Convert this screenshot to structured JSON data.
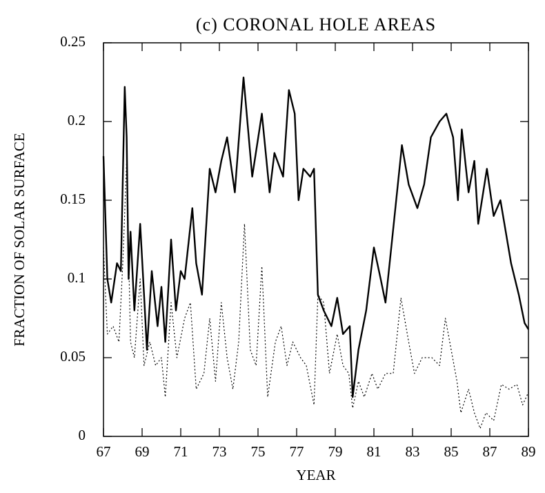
{
  "chart_data": {
    "type": "line",
    "title": "(c) CORONAL HOLE AREAS",
    "xlabel": "YEAR",
    "ylabel": "FRACTION OF SOLAR SURFACE",
    "xlim": [
      67,
      89
    ],
    "xticks": [
      67,
      69,
      71,
      73,
      75,
      77,
      79,
      81,
      83,
      85,
      87,
      89
    ],
    "ylim": [
      0,
      0.25
    ],
    "yticks": [
      0,
      0.05,
      0.1,
      0.15,
      0.2,
      0.25
    ],
    "grid": false,
    "series": [
      {
        "color": "#000000",
        "dash": "solid",
        "width": 2.4,
        "x": [
          67,
          67.2,
          67.4,
          67.7,
          67.9,
          68.1,
          68.2,
          68.3,
          68.4,
          68.6,
          68.9,
          69.1,
          69.25,
          69.5,
          69.8,
          70.0,
          70.2,
          70.5,
          70.75,
          71.0,
          71.2,
          71.6,
          71.8,
          72.1,
          72.5,
          72.8,
          73.1,
          73.4,
          73.8,
          74.25,
          74.7,
          75.2,
          75.6,
          75.85,
          76.3,
          76.6,
          76.9,
          77.1,
          77.35,
          77.7,
          77.9,
          78.1,
          78.4,
          78.8,
          79.1,
          79.4,
          79.75,
          79.9,
          80.2,
          80.6,
          81.0,
          81.35,
          81.6,
          81.9,
          82.45,
          82.8,
          83.25,
          83.6,
          83.95,
          84.4,
          84.75,
          85.1,
          85.35,
          85.55,
          85.9,
          86.2,
          86.4,
          86.85,
          87.2,
          87.55,
          88.1,
          88.5,
          88.8,
          89.0
        ],
        "values": [
          0.178,
          0.1,
          0.085,
          0.11,
          0.105,
          0.222,
          0.19,
          0.1,
          0.13,
          0.08,
          0.135,
          0.09,
          0.055,
          0.105,
          0.07,
          0.095,
          0.06,
          0.125,
          0.08,
          0.105,
          0.1,
          0.145,
          0.11,
          0.09,
          0.17,
          0.155,
          0.175,
          0.19,
          0.155,
          0.228,
          0.165,
          0.205,
          0.155,
          0.18,
          0.165,
          0.22,
          0.205,
          0.15,
          0.17,
          0.165,
          0.17,
          0.09,
          0.08,
          0.07,
          0.088,
          0.065,
          0.07,
          0.025,
          0.055,
          0.08,
          0.12,
          0.1,
          0.085,
          0.12,
          0.185,
          0.16,
          0.145,
          0.16,
          0.19,
          0.2,
          0.205,
          0.19,
          0.15,
          0.195,
          0.155,
          0.175,
          0.135,
          0.17,
          0.14,
          0.15,
          0.11,
          0.09,
          0.072,
          0.068
        ]
      },
      {
        "color": "#000000",
        "dash": "dotted",
        "width": 1.2,
        "x": [
          67,
          67.2,
          67.5,
          67.8,
          68.0,
          68.2,
          68.4,
          68.6,
          68.9,
          69.1,
          69.4,
          69.7,
          70.0,
          70.2,
          70.5,
          70.8,
          71.2,
          71.5,
          71.8,
          72.2,
          72.5,
          72.8,
          73.1,
          73.4,
          73.7,
          74.0,
          74.3,
          74.6,
          74.9,
          75.2,
          75.5,
          75.9,
          76.2,
          76.5,
          76.8,
          77.2,
          77.5,
          77.9,
          78.1,
          78.4,
          78.7,
          79.1,
          79.4,
          79.7,
          79.9,
          80.2,
          80.5,
          80.9,
          81.2,
          81.6,
          82.0,
          82.4,
          82.8,
          83.1,
          83.5,
          84.0,
          84.4,
          84.7,
          85.0,
          85.3,
          85.5,
          85.9,
          86.2,
          86.5,
          86.8,
          87.2,
          87.6,
          88.0,
          88.4,
          88.7,
          89.0
        ],
        "values": [
          0.12,
          0.065,
          0.07,
          0.06,
          0.11,
          0.175,
          0.06,
          0.05,
          0.1,
          0.045,
          0.06,
          0.045,
          0.05,
          0.025,
          0.085,
          0.05,
          0.075,
          0.085,
          0.03,
          0.04,
          0.075,
          0.035,
          0.085,
          0.05,
          0.03,
          0.06,
          0.135,
          0.055,
          0.045,
          0.108,
          0.025,
          0.06,
          0.07,
          0.045,
          0.06,
          0.05,
          0.045,
          0.02,
          0.09,
          0.085,
          0.04,
          0.065,
          0.045,
          0.04,
          0.018,
          0.035,
          0.025,
          0.04,
          0.03,
          0.04,
          0.04,
          0.088,
          0.06,
          0.04,
          0.05,
          0.05,
          0.045,
          0.075,
          0.055,
          0.035,
          0.015,
          0.03,
          0.015,
          0.005,
          0.015,
          0.01,
          0.033,
          0.03,
          0.033,
          0.02,
          0.028
        ]
      }
    ]
  }
}
